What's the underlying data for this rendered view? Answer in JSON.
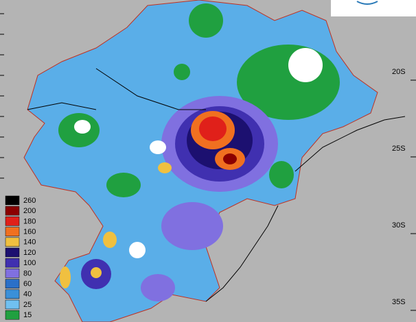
{
  "legend": {
    "items": [
      {
        "label": "260",
        "color": "#000000"
      },
      {
        "label": "200",
        "color": "#8b0000"
      },
      {
        "label": "180",
        "color": "#e0201a"
      },
      {
        "label": "160",
        "color": "#f07020"
      },
      {
        "label": "140",
        "color": "#f0c040"
      },
      {
        "label": "120",
        "color": "#1c1070"
      },
      {
        "label": "100",
        "color": "#4030b0"
      },
      {
        "label": "80",
        "color": "#8070e0"
      },
      {
        "label": "60",
        "color": "#2a70c8"
      },
      {
        "label": "40",
        "color": "#3a90d8"
      },
      {
        "label": "25",
        "color": "#70c0f0"
      },
      {
        "label": "15",
        "color": "#20a040"
      }
    ]
  },
  "latitude_labels": [
    "20S",
    "25S",
    "30S",
    "35S"
  ]
}
